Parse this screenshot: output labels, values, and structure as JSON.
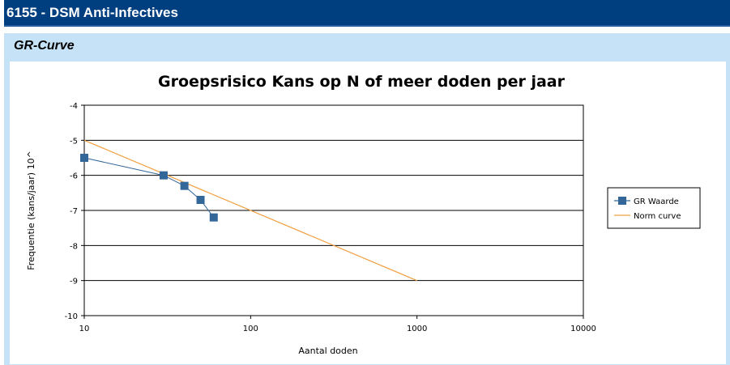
{
  "header": {
    "title": "6155 - DSM Anti-Infectives"
  },
  "panel": {
    "title": "GR-Curve"
  },
  "chart_data": {
    "type": "line",
    "title": "Groepsrisico Kans op N of meer doden per jaar",
    "xlabel": "Aantal doden",
    "ylabel": "Frequentie (kans/jaar) 10^",
    "x_scale": "log",
    "xlim": [
      10,
      10000
    ],
    "ylim": [
      -10,
      -4
    ],
    "x_ticks": [
      "10",
      "100",
      "1000",
      "10000"
    ],
    "y_ticks": [
      "-4",
      "-5",
      "-6",
      "-7",
      "-8",
      "-9",
      "-10"
    ],
    "grid": "horizontal",
    "legend_position": "right",
    "series": [
      {
        "name": "GR Waarde",
        "color": "#336699",
        "marker": "square",
        "x": [
          10,
          30,
          40,
          50,
          60
        ],
        "y": [
          -5.5,
          -6.0,
          -6.3,
          -6.7,
          -7.2
        ]
      },
      {
        "name": "Norm curve",
        "color": "#f0a040",
        "marker": "none",
        "x": [
          10,
          1000
        ],
        "y": [
          -5,
          -9
        ]
      }
    ]
  }
}
